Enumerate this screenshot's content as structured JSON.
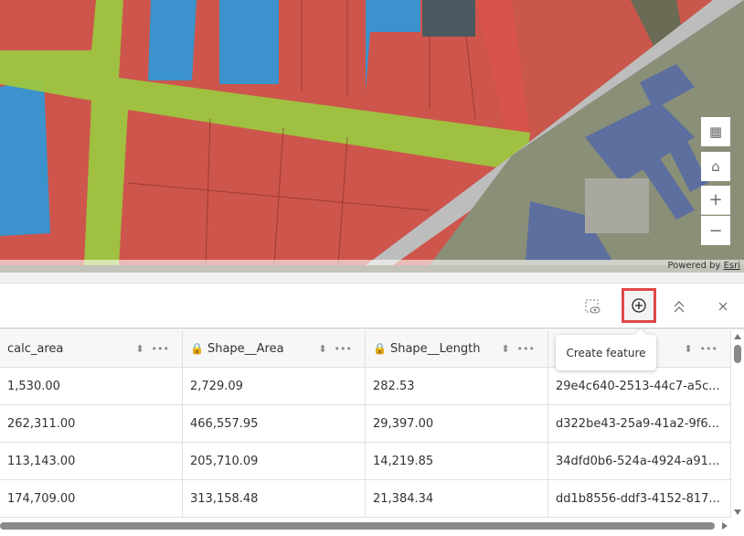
{
  "map": {
    "attribution_prefix": "Powered by ",
    "attribution_link": "Esri",
    "controls": [
      {
        "name": "table-settings",
        "icon": "table-gear-icon"
      },
      {
        "name": "home",
        "icon": "home-icon"
      },
      {
        "name": "zoom-in",
        "icon": "plus-icon",
        "label": "+"
      },
      {
        "name": "zoom-out",
        "icon": "minus-icon",
        "label": "−"
      }
    ],
    "colors": {
      "residential": "#e0473e",
      "blue_parcels": "#2f8fd0",
      "road": "#9cc83e"
    }
  },
  "toolbar": {
    "show_selected_icon": "select-eye-icon",
    "create_icon": "plus-circle-icon",
    "collapse_icon": "chevrons-up-icon",
    "close_icon": "close-icon",
    "tooltip": "Create feature"
  },
  "table": {
    "columns": [
      {
        "label": "calc_area",
        "locked": false
      },
      {
        "label": "Shape__Area",
        "locked": true
      },
      {
        "label": "Shape__Length",
        "locked": true
      },
      {
        "label": "",
        "locked": false
      }
    ],
    "rows": [
      [
        "1,530.00",
        "2,729.09",
        "282.53",
        "29e4c640-2513-44c7-a5c..."
      ],
      [
        "262,311.00",
        "466,557.95",
        "29,397.00",
        "d322be43-25a9-41a2-9f6..."
      ],
      [
        "113,143.00",
        "205,710.09",
        "14,219.85",
        "34dfd0b6-524a-4924-a91..."
      ],
      [
        "174,709.00",
        "313,158.48",
        "21,384.34",
        "dd1b8556-ddf3-4152-817..."
      ]
    ]
  }
}
